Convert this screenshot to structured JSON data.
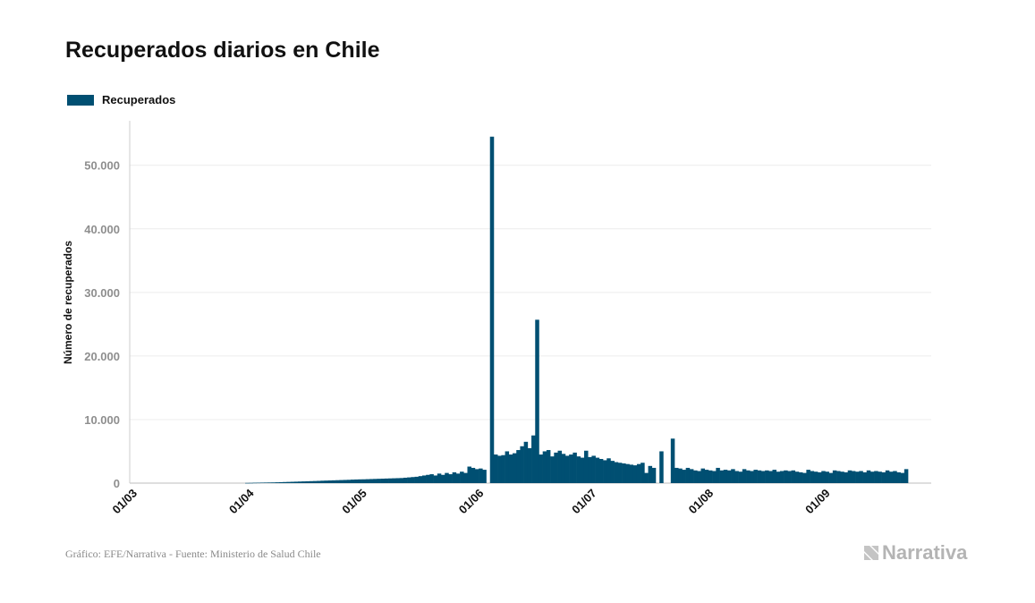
{
  "chart_data": {
    "type": "bar",
    "title": "Recuperados diarios en Chile",
    "ylabel": "Número de recuperados",
    "xlabel": "",
    "legend": [
      {
        "name": "Recuperados",
        "color": "#004f72"
      }
    ],
    "legend_position": "top-left",
    "grid": true,
    "ylim": [
      0,
      57000
    ],
    "yticks": [
      0,
      10000,
      20000,
      30000,
      40000,
      50000
    ],
    "ytick_labels": [
      "0",
      "10.000",
      "20.000",
      "30.000",
      "40.000",
      "50.000"
    ],
    "xtick_labels": [
      "01/03",
      "01/04",
      "01/05",
      "01/06",
      "01/07",
      "01/08",
      "01/09"
    ],
    "xtick_days": [
      0,
      31,
      61,
      92,
      122,
      153,
      184
    ],
    "start_date": "2020-03-01",
    "values": [
      0,
      0,
      0,
      0,
      0,
      0,
      0,
      0,
      0,
      0,
      0,
      0,
      0,
      0,
      0,
      0,
      0,
      0,
      0,
      0,
      0,
      0,
      0,
      0,
      0,
      0,
      0,
      0,
      0,
      30,
      40,
      60,
      70,
      80,
      90,
      100,
      110,
      130,
      150,
      170,
      190,
      210,
      230,
      250,
      270,
      290,
      310,
      330,
      350,
      380,
      400,
      420,
      440,
      460,
      480,
      500,
      520,
      550,
      570,
      590,
      600,
      620,
      640,
      660,
      680,
      700,
      720,
      740,
      760,
      780,
      800,
      850,
      900,
      950,
      1000,
      1100,
      1200,
      1300,
      1400,
      1200,
      1500,
      1300,
      1600,
      1400,
      1700,
      1500,
      1800,
      1600,
      2600,
      2400,
      2200,
      2300,
      2100,
      0,
      54500,
      4500,
      4300,
      4400,
      5000,
      4500,
      4700,
      5200,
      5800,
      6500,
      5500,
      7500,
      25700,
      4500,
      5000,
      5200,
      4200,
      4800,
      5100,
      4600,
      4300,
      4500,
      4800,
      4200,
      4000,
      5100,
      4100,
      4300,
      4000,
      3800,
      3600,
      3900,
      3500,
      3300,
      3200,
      3100,
      3000,
      2900,
      2800,
      3000,
      3200,
      1600,
      2700,
      2400,
      0,
      5000,
      0,
      0,
      7000,
      2400,
      2300,
      2100,
      2400,
      2200,
      2000,
      1900,
      2300,
      2100,
      2000,
      1900,
      2400,
      2000,
      2100,
      2000,
      2200,
      1900,
      1800,
      2200,
      2000,
      1900,
      2100,
      2000,
      1900,
      2000,
      1900,
      2100,
      1800,
      1900,
      2000,
      1900,
      2000,
      1800,
      1700,
      1600,
      2100,
      1900,
      1800,
      1700,
      1900,
      1800,
      1600,
      2000,
      1900,
      1800,
      1700,
      2000,
      1900,
      1800,
      1900,
      1700,
      2000,
      1800,
      1900,
      1800,
      1700,
      2000,
      1800,
      1900,
      1700,
      1600,
      2200
    ]
  }
}
